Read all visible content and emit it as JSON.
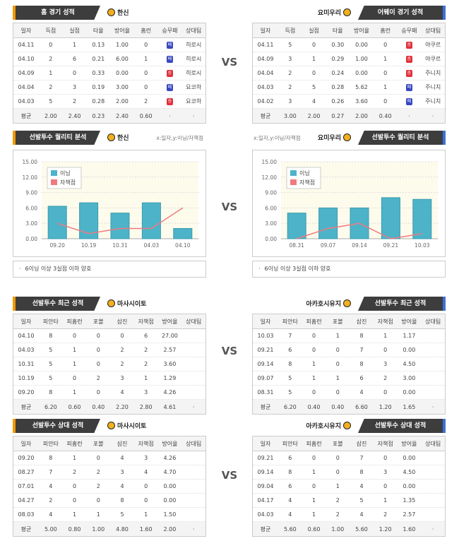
{
  "vs": "VS",
  "tables": [
    {
      "title": "홈 경기 성적",
      "team": "한신",
      "columns": [
        "일자",
        "득점",
        "실점",
        "타율",
        "방어율",
        "홈런",
        "승무패",
        "상대팀"
      ],
      "rows": [
        [
          "04.11",
          "0",
          "1",
          "0.13",
          "1.00",
          "0",
          {
            "text": "패",
            "color": "#3848c0"
          },
          "히로시"
        ],
        [
          "04.10",
          "2",
          "6",
          "0.21",
          "6.00",
          "1",
          {
            "text": "패",
            "color": "#3848c0"
          },
          "히로시"
        ],
        [
          "04.09",
          "1",
          "0",
          "0.33",
          "0.00",
          "0",
          {
            "text": "승",
            "color": "#e0303a"
          },
          "히로시"
        ],
        [
          "04.04",
          "2",
          "3",
          "0.19",
          "3.00",
          "0",
          {
            "text": "패",
            "color": "#3848c0"
          },
          "요코하"
        ],
        [
          "04.03",
          "5",
          "2",
          "0.28",
          "2.00",
          "2",
          {
            "text": "승",
            "color": "#e0303a"
          },
          "요코하"
        ],
        [
          "평균",
          "2.00",
          "2.40",
          "0.23",
          "2.40",
          "0.60",
          "·",
          "·"
        ]
      ]
    },
    {
      "title": "어웨이 경기 성적",
      "team": "요미우리",
      "columns": [
        "일자",
        "득점",
        "실점",
        "타율",
        "방어율",
        "홈런",
        "승무패",
        "상대팀"
      ],
      "rows": [
        [
          "04.11",
          "5",
          "0",
          "0.30",
          "0.00",
          "0",
          {
            "text": "승",
            "color": "#e0303a"
          },
          "야쿠르"
        ],
        [
          "04.09",
          "3",
          "1",
          "0.29",
          "1.00",
          "1",
          {
            "text": "승",
            "color": "#e0303a"
          },
          "야쿠르"
        ],
        [
          "04.04",
          "2",
          "0",
          "0.24",
          "0.00",
          "0",
          {
            "text": "승",
            "color": "#e0303a"
          },
          "주니치"
        ],
        [
          "04.03",
          "2",
          "5",
          "0.28",
          "5.62",
          "1",
          {
            "text": "패",
            "color": "#3848c0"
          },
          "주니치"
        ],
        [
          "04.02",
          "3",
          "4",
          "0.26",
          "3.60",
          "0",
          {
            "text": "패",
            "color": "#3848c0"
          },
          "주니치"
        ],
        [
          "평균",
          "3.00",
          "2.00",
          "0.27",
          "2.00",
          "0.40",
          "·",
          "·"
        ]
      ]
    },
    {
      "title": "선발투수 최근 성적",
      "team": "마사시이토",
      "columns": [
        "일자",
        "피안타",
        "피홈런",
        "포볼",
        "삼진",
        "자책점",
        "방어율",
        "상대팀"
      ],
      "rows": [
        [
          "04.10",
          "8",
          "0",
          "0",
          "0",
          "6",
          "27.00",
          ""
        ],
        [
          "04.03",
          "5",
          "1",
          "0",
          "2",
          "2",
          "2.57",
          ""
        ],
        [
          "10.31",
          "5",
          "1",
          "0",
          "2",
          "2",
          "3.60",
          ""
        ],
        [
          "10.19",
          "5",
          "0",
          "2",
          "3",
          "1",
          "1.29",
          ""
        ],
        [
          "09.20",
          "8",
          "1",
          "0",
          "4",
          "3",
          "4.26",
          ""
        ],
        [
          "평균",
          "6.20",
          "0.60",
          "0.40",
          "2.20",
          "2.80",
          "4.61",
          "·"
        ]
      ]
    },
    {
      "title": "선발투수 최근 성적",
      "team": "아카호시유지",
      "columns": [
        "일자",
        "피안타",
        "피홈런",
        "포볼",
        "삼진",
        "자책점",
        "방어율",
        "상대팀"
      ],
      "rows": [
        [
          "10.03",
          "7",
          "0",
          "1",
          "8",
          "1",
          "1.17",
          ""
        ],
        [
          "09.21",
          "6",
          "0",
          "0",
          "7",
          "0",
          "0.00",
          ""
        ],
        [
          "09.14",
          "8",
          "1",
          "0",
          "8",
          "3",
          "4.50",
          ""
        ],
        [
          "09.07",
          "5",
          "1",
          "1",
          "6",
          "2",
          "3.00",
          ""
        ],
        [
          "08.31",
          "5",
          "0",
          "0",
          "4",
          "0",
          "0.00",
          ""
        ],
        [
          "평균",
          "6.20",
          "0.40",
          "0.40",
          "6.60",
          "1.20",
          "1.65",
          "·"
        ]
      ]
    },
    {
      "title": "선발투수 상대 성적",
      "team": "마사시이토",
      "columns": [
        "일자",
        "피안타",
        "피홈런",
        "포볼",
        "삼진",
        "자책점",
        "방어율",
        "상대팀"
      ],
      "rows": [
        [
          "09.20",
          "8",
          "1",
          "0",
          "4",
          "3",
          "4.26",
          ""
        ],
        [
          "08.27",
          "7",
          "2",
          "2",
          "3",
          "4",
          "4.70",
          ""
        ],
        [
          "07.01",
          "4",
          "0",
          "2",
          "4",
          "0",
          "0.00",
          ""
        ],
        [
          "04.27",
          "2",
          "0",
          "0",
          "8",
          "0",
          "0.00",
          ""
        ],
        [
          "08.03",
          "4",
          "1",
          "1",
          "5",
          "1",
          "1.50",
          ""
        ],
        [
          "평균",
          "5.00",
          "0.80",
          "1.00",
          "4.80",
          "1.60",
          "2.00",
          "·"
        ]
      ]
    },
    {
      "title": "선발투수 상대 성적",
      "team": "아카호시유지",
      "columns": [
        "일자",
        "피안타",
        "피홈런",
        "포볼",
        "삼진",
        "자책점",
        "방어율",
        "상대팀"
      ],
      "rows": [
        [
          "09.21",
          "6",
          "0",
          "0",
          "7",
          "0",
          "0.00",
          ""
        ],
        [
          "09.14",
          "8",
          "1",
          "0",
          "8",
          "3",
          "4.50",
          ""
        ],
        [
          "09.04",
          "6",
          "0",
          "1",
          "4",
          "0",
          "0.00",
          ""
        ],
        [
          "04.17",
          "4",
          "1",
          "2",
          "5",
          "1",
          "1.35",
          ""
        ],
        [
          "04.03",
          "4",
          "1",
          "2",
          "4",
          "2",
          "2.57",
          ""
        ],
        [
          "평균",
          "5.60",
          "0.60",
          "1.00",
          "5.60",
          "1.20",
          "1.60",
          "·"
        ]
      ]
    }
  ],
  "chart_data": [
    {
      "type": "bar",
      "title": "선발투수 퀄리티 분석",
      "subtitle": "한신",
      "axis_note": "x:일자,y:이닝/자책점",
      "note": "6이닝 이상 3실점 이하 양호",
      "categories": [
        "09.20",
        "10.19",
        "10.31",
        "04.03",
        "04.10"
      ],
      "series": [
        {
          "name": "이닝",
          "color": "#4db3c8",
          "values": [
            6.33,
            7,
            5,
            7,
            2
          ]
        },
        {
          "name": "자책점",
          "color": "#f07a80",
          "values": [
            3,
            1,
            2,
            2,
            6
          ]
        }
      ],
      "ylim": [
        0,
        15
      ],
      "yticks": [
        {
          "value": 0,
          "label": "0.00"
        },
        {
          "value": 3,
          "label": "3.00"
        },
        {
          "value": 6,
          "label": "6.00"
        },
        {
          "value": 9,
          "label": "9.00"
        },
        {
          "value": 12,
          "label": "12.00"
        },
        {
          "value": 15,
          "label": "15.00"
        }
      ],
      "grid": true
    },
    {
      "type": "bar",
      "title": "선발투수 퀄리티 분석",
      "subtitle": "요미우리",
      "axis_note": "x:일자,y:이닝/자책점",
      "note": "6이닝 이상 3실점 이하 양호",
      "categories": [
        "08.31",
        "09.07",
        "09.14",
        "09.21",
        "10.03"
      ],
      "series": [
        {
          "name": "이닝",
          "color": "#4db3c8",
          "values": [
            5,
            6,
            6,
            8,
            7.67
          ]
        },
        {
          "name": "자책점",
          "color": "#f07a80",
          "values": [
            0,
            2,
            3,
            0,
            1
          ]
        }
      ],
      "ylim": [
        0,
        15
      ],
      "yticks": [
        {
          "value": 0,
          "label": "0.00"
        },
        {
          "value": 3,
          "label": "3.00"
        },
        {
          "value": 6,
          "label": "6.00"
        },
        {
          "value": 9,
          "label": "9.00"
        },
        {
          "value": 12,
          "label": "12.00"
        },
        {
          "value": 15,
          "label": "15.00"
        }
      ],
      "grid": true
    }
  ]
}
